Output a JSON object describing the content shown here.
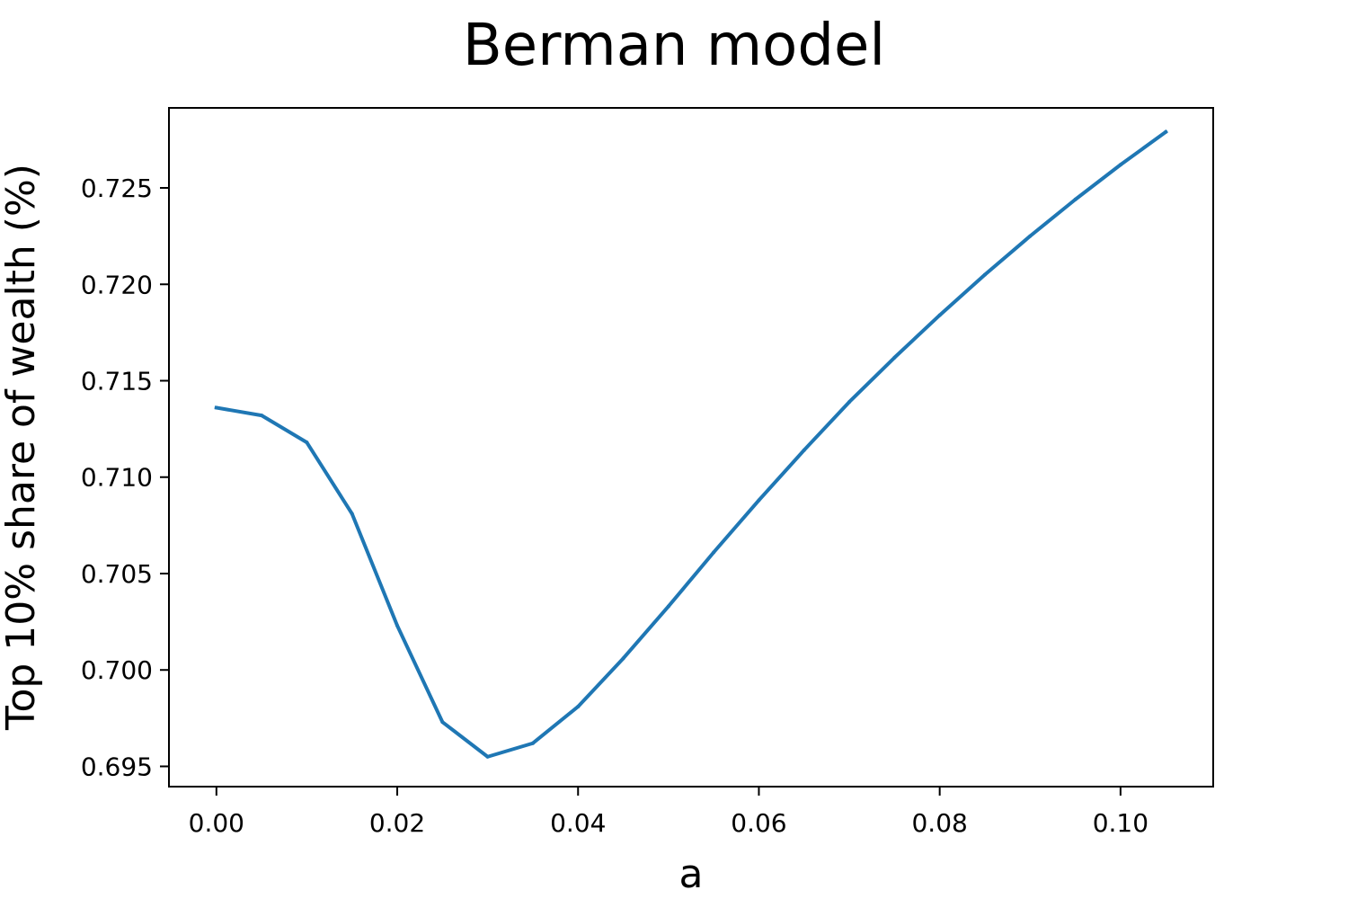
{
  "chart_data": {
    "type": "line",
    "title": "Berman model",
    "xlabel": "a",
    "ylabel": "Top 10% share of wealth (%)",
    "xlim": [
      -0.00525,
      0.11025
    ],
    "ylim": [
      0.69395,
      0.72915
    ],
    "xticks": [
      0.0,
      0.02,
      0.04,
      0.06,
      0.08,
      0.1
    ],
    "xtick_labels": [
      "0.00",
      "0.02",
      "0.04",
      "0.06",
      "0.08",
      "0.10"
    ],
    "yticks": [
      0.695,
      0.7,
      0.705,
      0.71,
      0.715,
      0.72,
      0.725
    ],
    "ytick_labels": [
      "0.695",
      "0.700",
      "0.705",
      "0.710",
      "0.715",
      "0.720",
      "0.725"
    ],
    "grid": false,
    "series": [
      {
        "color": "#1f77b4",
        "x": [
          0.0,
          0.005,
          0.01,
          0.015,
          0.02,
          0.025,
          0.03,
          0.035,
          0.04,
          0.045,
          0.05,
          0.055,
          0.06,
          0.065,
          0.07,
          0.075,
          0.08,
          0.085,
          0.09,
          0.095,
          0.1,
          0.105
        ],
        "y": [
          0.7136,
          0.7132,
          0.7118,
          0.7081,
          0.7023,
          0.6973,
          0.6955,
          0.6962,
          0.6981,
          0.7006,
          0.7033,
          0.7061,
          0.7088,
          0.7114,
          0.7139,
          0.7162,
          0.7184,
          0.7205,
          0.7225,
          0.7244,
          0.7262,
          0.7279
        ]
      }
    ]
  }
}
